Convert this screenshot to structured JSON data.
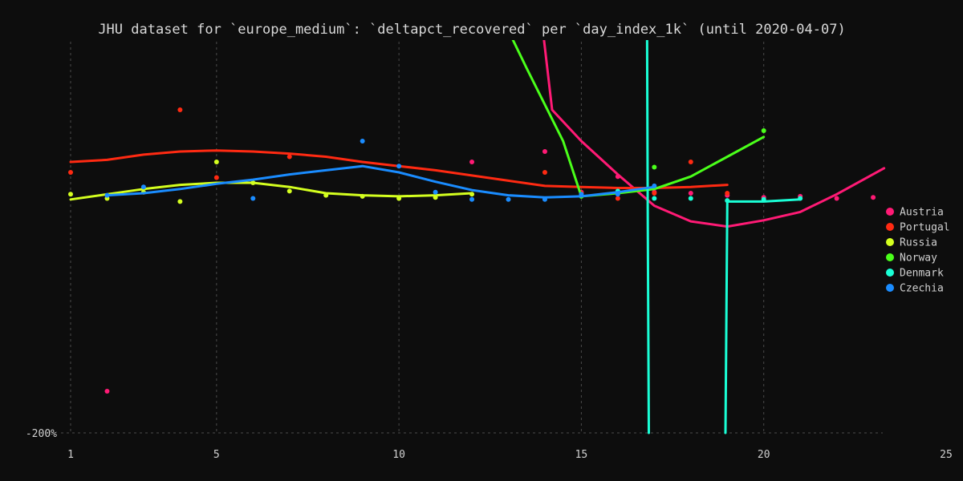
{
  "chart_data": {
    "type": "scatter",
    "title": "JHU dataset for `europe_medium`: `deltapct_recovered` per `day_index_1k` (until 2020-04-07)",
    "xlim": [
      1,
      25
    ],
    "ylim": [
      -200,
      0
    ],
    "x_ticks": [
      "1",
      "5",
      "10",
      "15",
      "20",
      "25"
    ],
    "x_tick_values": [
      1,
      5,
      10,
      15,
      20,
      25
    ],
    "y_ticks": [
      "-200%"
    ],
    "y_tick_values": [
      -200
    ],
    "grid": true,
    "legend_position": "right",
    "series": [
      {
        "name": "Austria",
        "color": "#ff1a75",
        "points": [
          [
            2,
            -160
          ],
          [
            12,
            60
          ],
          [
            14,
            70
          ],
          [
            15,
            31
          ],
          [
            16,
            46
          ],
          [
            17,
            31
          ],
          [
            18,
            30
          ],
          [
            19,
            28
          ],
          [
            20,
            26
          ],
          [
            21,
            27
          ],
          [
            22,
            25
          ],
          [
            23,
            26
          ]
        ],
        "trend": [
          [
            13.9,
            200
          ],
          [
            14.2,
            110
          ],
          [
            15,
            80
          ],
          [
            16,
            48
          ],
          [
            17,
            18
          ],
          [
            18,
            3
          ],
          [
            19,
            -2
          ],
          [
            20,
            4
          ],
          [
            21,
            12
          ],
          [
            22,
            29
          ],
          [
            23.3,
            54
          ]
        ]
      },
      {
        "name": "Portugal",
        "color": "#ff2a12",
        "points": [
          [
            1,
            50
          ],
          [
            4,
            110
          ],
          [
            5,
            45
          ],
          [
            7,
            65
          ],
          [
            14,
            50
          ],
          [
            15,
            30
          ],
          [
            16,
            25
          ],
          [
            17,
            30
          ],
          [
            18,
            60
          ],
          [
            19,
            30
          ]
        ],
        "trend": [
          [
            1,
            60
          ],
          [
            2,
            62
          ],
          [
            3,
            67
          ],
          [
            4,
            70
          ],
          [
            5,
            71
          ],
          [
            6,
            70
          ],
          [
            7,
            68
          ],
          [
            8,
            65
          ],
          [
            9,
            60
          ],
          [
            10,
            56
          ],
          [
            11,
            52
          ],
          [
            12,
            47
          ],
          [
            13,
            42
          ],
          [
            14,
            37
          ],
          [
            15,
            36
          ],
          [
            16,
            35
          ],
          [
            17,
            35
          ],
          [
            18,
            36
          ],
          [
            19,
            38
          ]
        ]
      },
      {
        "name": "Russia",
        "color": "#d4ff1f",
        "points": [
          [
            1,
            29
          ],
          [
            2,
            25
          ],
          [
            3,
            31
          ],
          [
            4,
            22
          ],
          [
            5,
            60
          ],
          [
            6,
            40
          ],
          [
            7,
            32
          ],
          [
            8,
            28
          ],
          [
            9,
            27
          ],
          [
            10,
            25
          ],
          [
            11,
            26
          ],
          [
            12,
            29
          ]
        ],
        "trend": [
          [
            1,
            24
          ],
          [
            2,
            29
          ],
          [
            3,
            34
          ],
          [
            4,
            38
          ],
          [
            5,
            40
          ],
          [
            6,
            40
          ],
          [
            7,
            36
          ],
          [
            8,
            30
          ],
          [
            9,
            28
          ],
          [
            10,
            27
          ],
          [
            11,
            28
          ],
          [
            12,
            30
          ]
        ]
      },
      {
        "name": "Norway",
        "color": "#4aff1a",
        "points": [
          [
            15,
            27
          ],
          [
            16,
            30
          ],
          [
            17,
            55
          ],
          [
            20,
            90
          ]
        ],
        "trend": [
          [
            12.6,
            215
          ],
          [
            13.5,
            150
          ],
          [
            14.5,
            80
          ],
          [
            15,
            27
          ],
          [
            16,
            30
          ],
          [
            17,
            34
          ],
          [
            18,
            46
          ],
          [
            19,
            65
          ],
          [
            20,
            84
          ]
        ]
      },
      {
        "name": "Denmark",
        "color": "#1affd6",
        "points": [
          [
            16,
            32
          ],
          [
            17,
            25
          ],
          [
            18,
            25
          ],
          [
            19,
            23
          ],
          [
            20,
            24
          ],
          [
            21,
            25
          ]
        ],
        "trend": [
          [
            16.8,
            210
          ],
          [
            16.82,
            0
          ],
          [
            16.85,
            -200
          ]
        ],
        "trend2": [
          [
            18.95,
            -200
          ],
          [
            19,
            22
          ],
          [
            20,
            22
          ],
          [
            21,
            24
          ]
        ]
      },
      {
        "name": "Czechia",
        "color": "#1a8cff",
        "points": [
          [
            2,
            28
          ],
          [
            3,
            36
          ],
          [
            6,
            25
          ],
          [
            9,
            80
          ],
          [
            10,
            56
          ],
          [
            11,
            31
          ],
          [
            12,
            24
          ],
          [
            13,
            24
          ],
          [
            14,
            24
          ],
          [
            15,
            29
          ],
          [
            16,
            29
          ],
          [
            17,
            37
          ]
        ],
        "trend": [
          [
            2,
            28
          ],
          [
            3,
            30
          ],
          [
            4,
            34
          ],
          [
            5,
            39
          ],
          [
            6,
            43
          ],
          [
            7,
            48
          ],
          [
            8,
            52
          ],
          [
            9,
            56
          ],
          [
            10,
            50
          ],
          [
            11,
            41
          ],
          [
            12,
            33
          ],
          [
            13,
            28
          ],
          [
            14,
            26
          ],
          [
            15,
            27
          ],
          [
            16,
            31
          ],
          [
            17,
            36
          ]
        ]
      }
    ]
  }
}
